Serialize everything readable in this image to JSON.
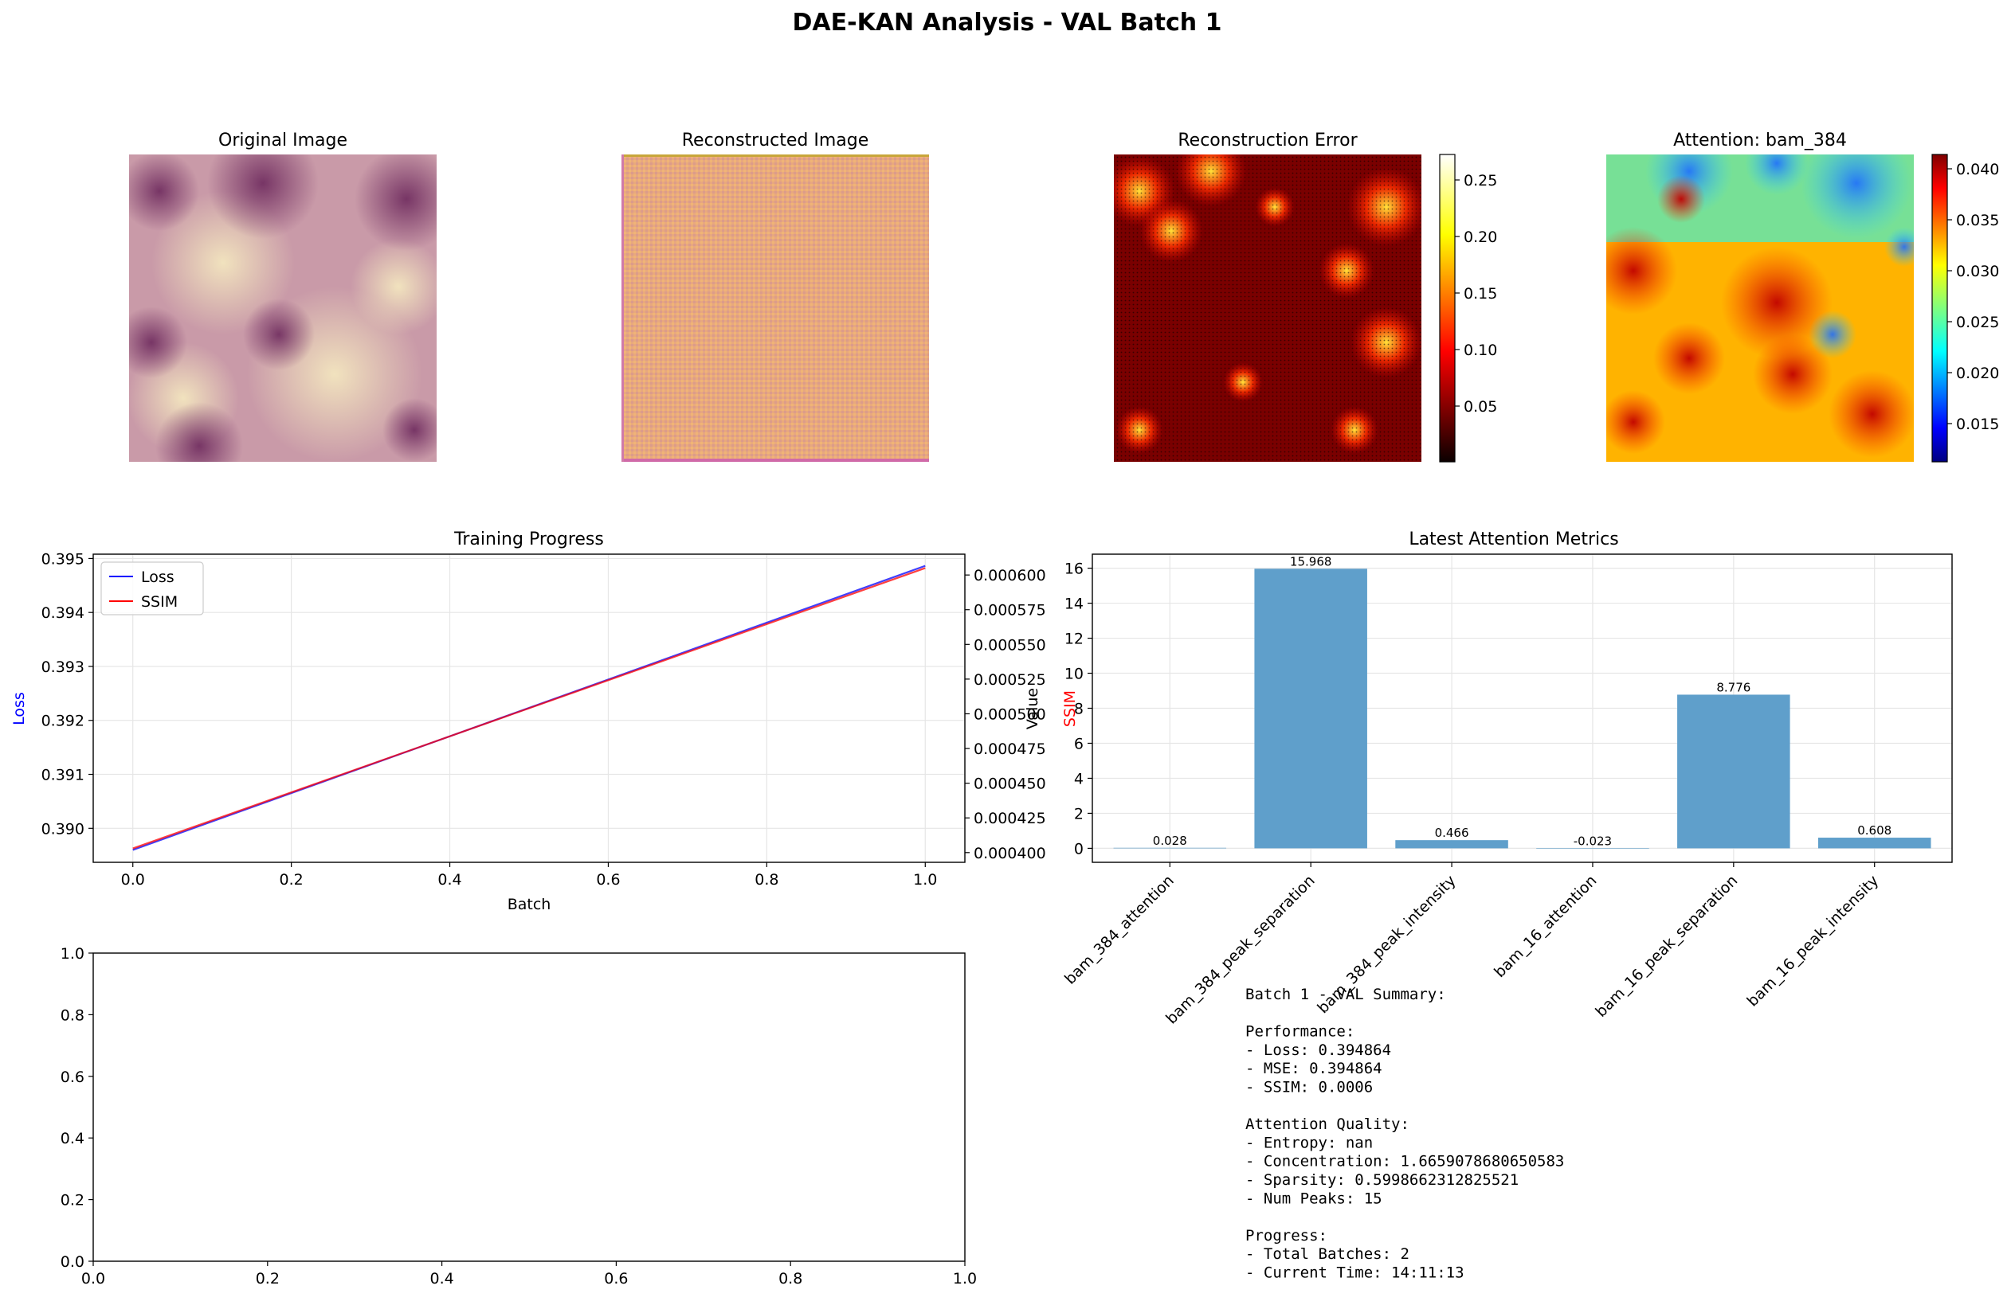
{
  "figure": {
    "title": "DAE-KAN Analysis - VAL Batch 1"
  },
  "panels": {
    "original": {
      "title": "Original Image"
    },
    "reconstructed": {
      "title": "Reconstructed Image"
    },
    "error": {
      "title": "Reconstruction Error",
      "colorbar_ticks": [
        "0.05",
        "0.10",
        "0.15",
        "0.20",
        "0.25"
      ]
    },
    "attention": {
      "title": "Attention: bam_384",
      "colorbar_ticks": [
        "0.015",
        "0.020",
        "0.025",
        "0.030",
        "0.035",
        "0.040"
      ]
    }
  },
  "colors": {
    "loss": "#0000ff",
    "ssim": "#ff0000",
    "bar": "#5f9fcb",
    "grid": "#e6e6e6"
  },
  "chart_data": [
    {
      "type": "line",
      "title": "Training Progress",
      "xlabel": "Batch",
      "ylabel": "Loss",
      "ylabel2": "SSIM",
      "legend_position": "top-left",
      "grid": true,
      "x": [
        0,
        1
      ],
      "xlim": [
        -0.05,
        1.05
      ],
      "xticks": [
        "0.0",
        "0.2",
        "0.4",
        "0.6",
        "0.8",
        "1.0"
      ],
      "ylim": [
        0.38937,
        0.39508
      ],
      "yticks": [
        "0.390",
        "0.391",
        "0.392",
        "0.393",
        "0.394",
        "0.395"
      ],
      "y2lim": [
        0.000393,
        0.000615
      ],
      "y2ticks": [
        "0.000400",
        "0.000425",
        "0.000450",
        "0.000475",
        "0.000500",
        "0.000525",
        "0.000550",
        "0.000575",
        "0.000600"
      ],
      "series": [
        {
          "name": "Loss",
          "axis": "left",
          "values": [
            0.3896,
            0.394864
          ]
        },
        {
          "name": "SSIM",
          "axis": "right",
          "values": [
            0.000403,
            0.000605
          ]
        }
      ]
    },
    {
      "type": "bar",
      "title": "Latest Attention Metrics",
      "ylabel": "Value",
      "grid": true,
      "categories": [
        "bam_384_attention",
        "bam_384_peak_separation",
        "bam_384_peak_intensity",
        "bam_16_attention",
        "bam_16_peak_separation",
        "bam_16_peak_intensity"
      ],
      "values": [
        0.028,
        15.968,
        0.466,
        -0.023,
        8.776,
        0.608
      ],
      "value_labels": [
        "0.028",
        "15.968",
        "0.466",
        "-0.023",
        "8.776",
        "0.608"
      ],
      "ylim": [
        -0.8,
        16.8
      ],
      "yticks": [
        "0",
        "2",
        "4",
        "6",
        "8",
        "10",
        "12",
        "14",
        "16"
      ]
    },
    {
      "type": "line",
      "title": "",
      "xlim": [
        0,
        1
      ],
      "ylim": [
        0,
        1
      ],
      "xticks": [
        "0.0",
        "0.2",
        "0.4",
        "0.6",
        "0.8",
        "1.0"
      ],
      "yticks": [
        "0.0",
        "0.2",
        "0.4",
        "0.6",
        "0.8",
        "1.0"
      ],
      "series": []
    }
  ],
  "summary": {
    "lines": [
      "Batch 1 - VAL Summary:",
      "",
      "Performance:",
      "- Loss: 0.394864",
      "- MSE: 0.394864",
      "- SSIM: 0.0006",
      "",
      "Attention Quality:",
      "- Entropy: nan",
      "- Concentration: 1.6659078680650583",
      "- Sparsity: 0.5998662312825521",
      "- Num Peaks: 15",
      "",
      "Progress:",
      "- Total Batches: 2",
      "- Current Time: 14:11:13"
    ]
  }
}
